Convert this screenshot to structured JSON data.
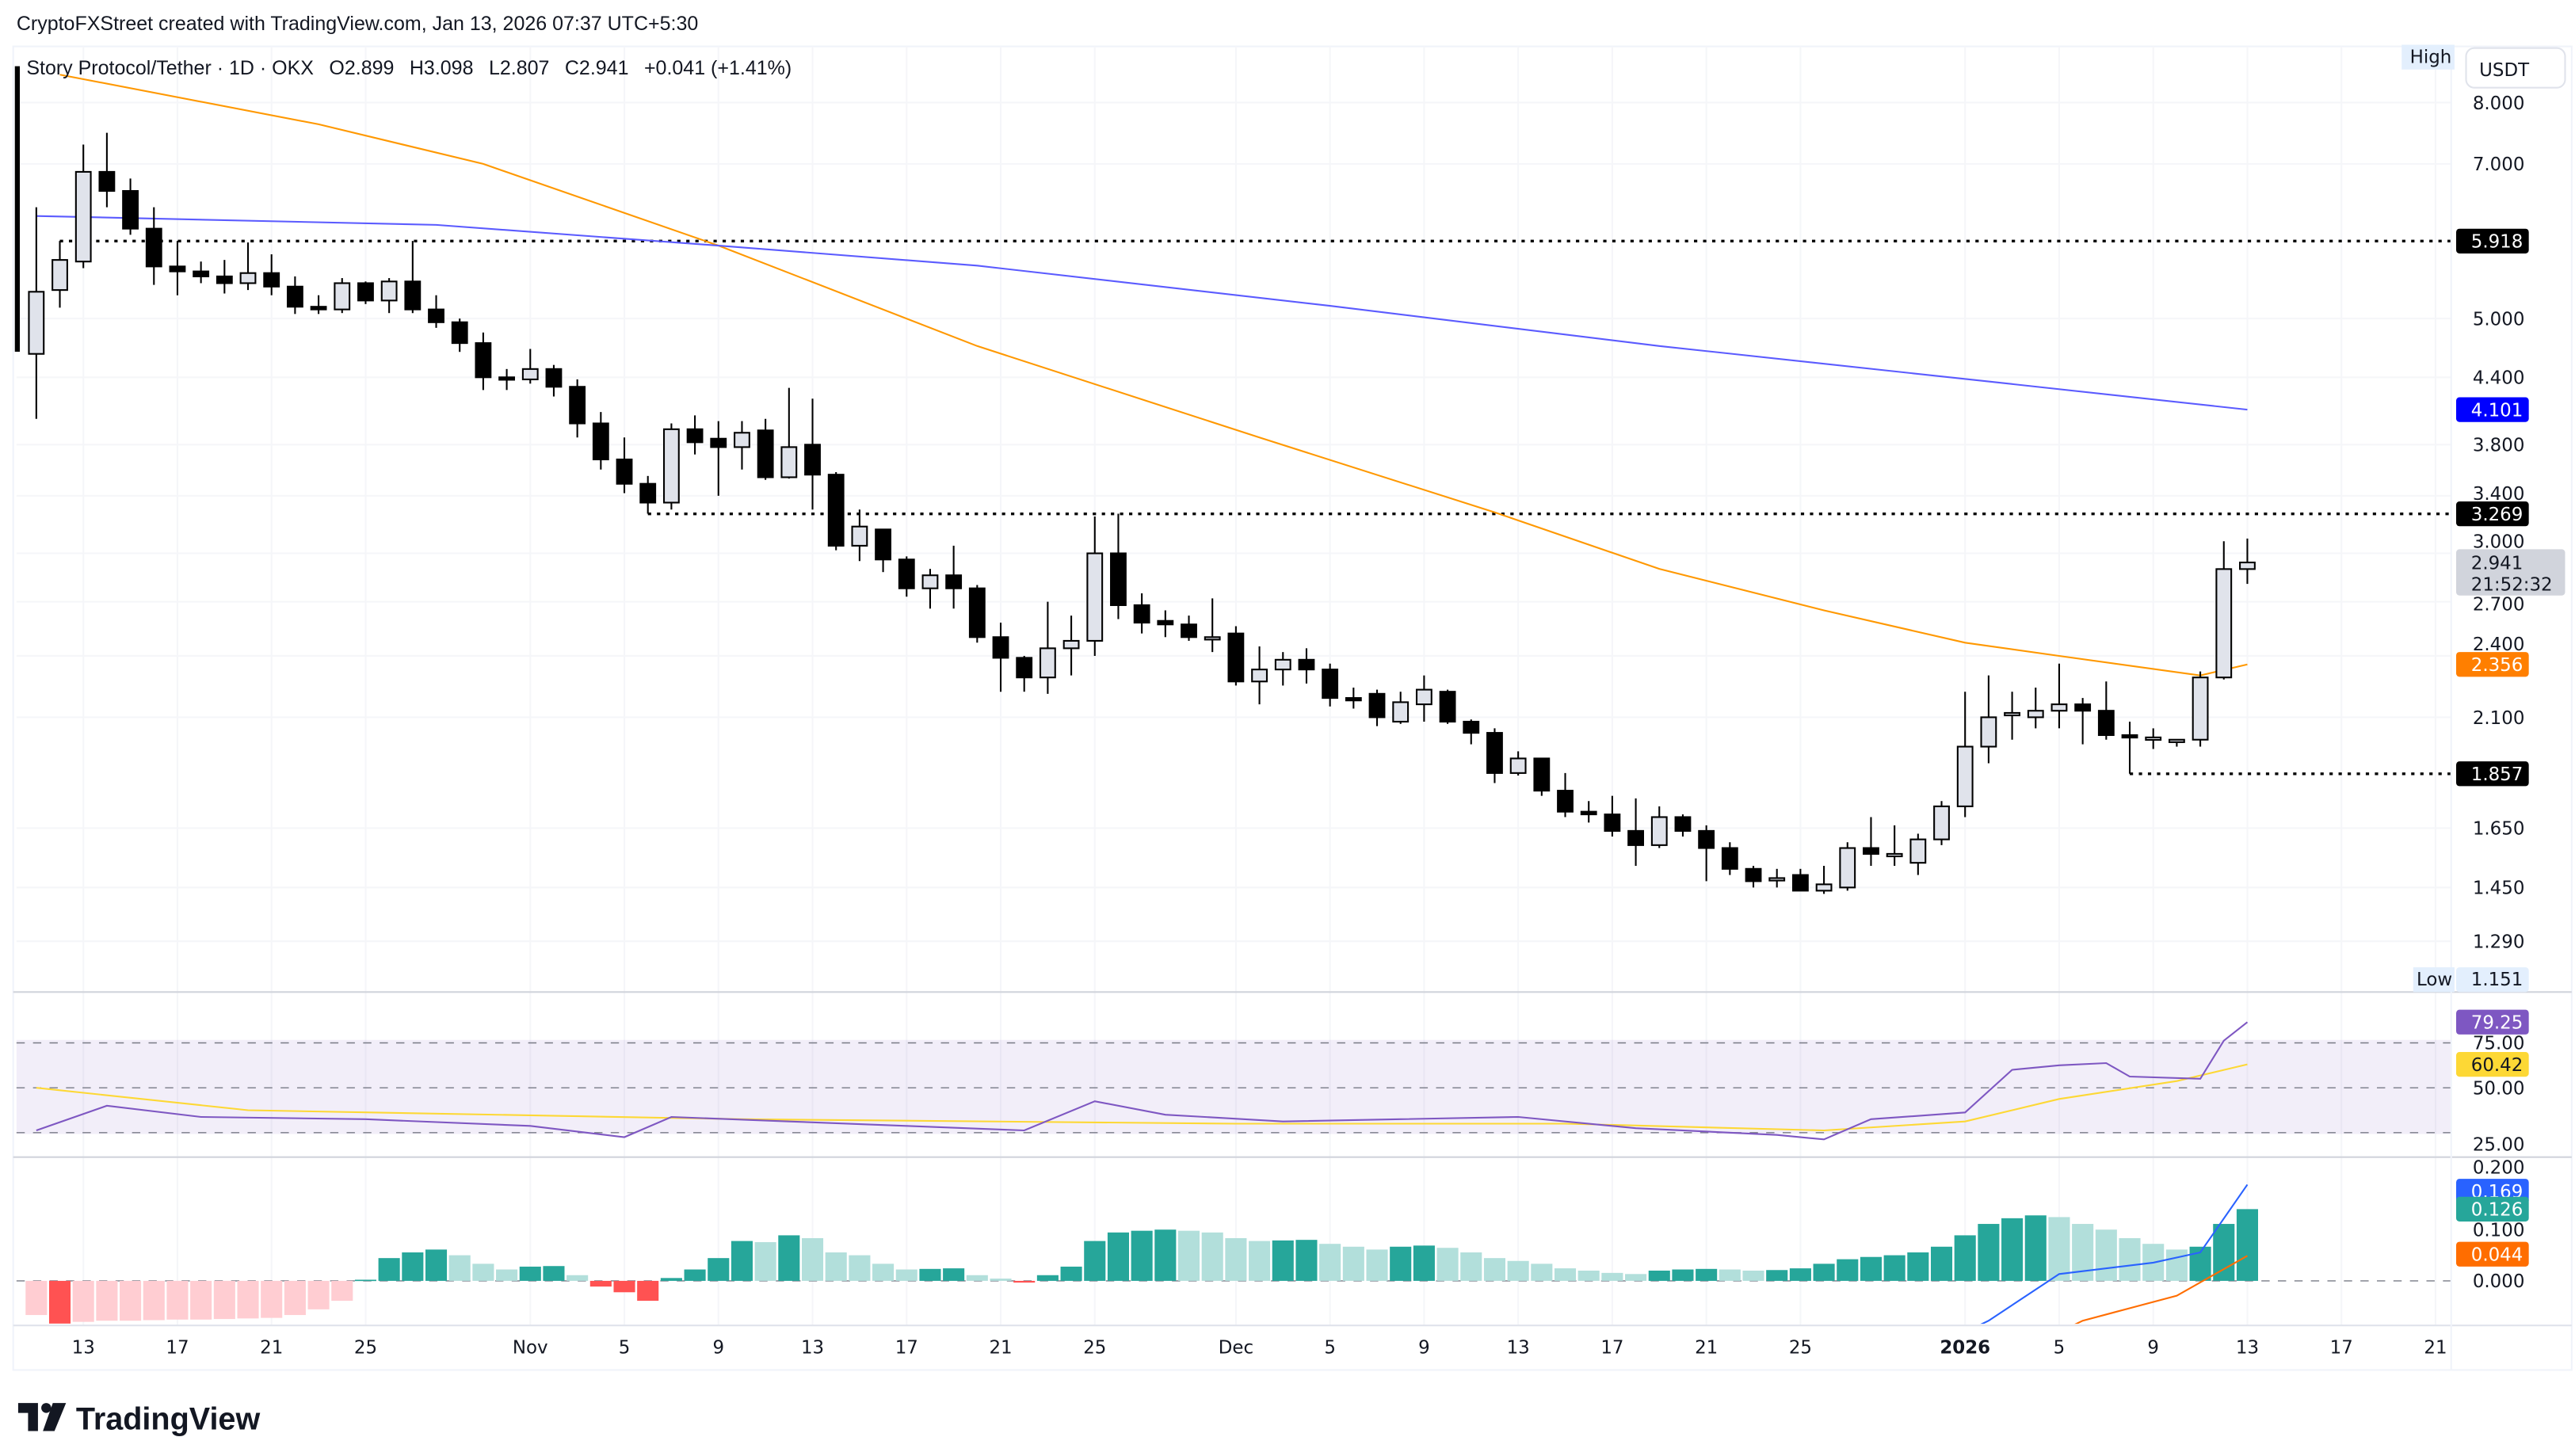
{
  "header": {
    "attribution": "CryptoFXStreet created with TradingView.com, Jan 13, 2026 07:37 UTC+5:30",
    "symbol": "Story Protocol/Tether · 1D · OKX",
    "open": "O2.899",
    "high": "H3.098",
    "low": "L2.807",
    "close": "C2.941",
    "change": "+0.041 (+1.41%)"
  },
  "currency_button": "USDT",
  "high_label": "High",
  "low_label": "Low",
  "low_value": "1.151",
  "logo_text": "TradingView",
  "badges": {
    "level_top": {
      "text": "5.918",
      "value": 5.918,
      "color": "#000000"
    },
    "sma200": {
      "text": "4.101",
      "value": 4.101,
      "color": "#0000ff"
    },
    "level_mid": {
      "text": "3.269",
      "value": 3.269,
      "color": "#000000"
    },
    "last_price": {
      "text": "2.941",
      "countdown": "21:52:32",
      "value": 2.941,
      "color": "#d1d4dc"
    },
    "sma50": {
      "text": "2.356",
      "value": 2.356,
      "color": "#ff7f00"
    },
    "level_low": {
      "text": "1.857",
      "value": 1.857,
      "color": "#000000"
    },
    "rsi": {
      "text": "79.25",
      "value": 79.25,
      "color": "#7e57c2"
    },
    "rsi_ma": {
      "text": "60.42",
      "value": 60.42,
      "color": "#fdd835"
    },
    "macd": {
      "text": "0.169",
      "value": 0.169,
      "color": "#2962ff"
    },
    "histogram": {
      "text": "0.126",
      "value": 0.126,
      "color": "#26a69a"
    },
    "signal": {
      "text": "0.044",
      "value": 0.044,
      "color": "#ff6d00"
    }
  },
  "chart_data": {
    "type": "candlestick",
    "title": "Story Protocol/Tether · 1D · OKX",
    "price_scale": "log",
    "price_ticks": [
      "8.000",
      "7.000",
      "5.000",
      "4.400",
      "3.800",
      "3.400",
      "3.000",
      "2.700",
      "2.400",
      "2.100",
      "1.650",
      "1.450",
      "1.290"
    ],
    "rsi_ticks": [
      "75.00",
      "50.00",
      "25.00"
    ],
    "macd_ticks": [
      "0.200",
      "0.100",
      "0.000"
    ],
    "time_ticks": [
      {
        "label": "13",
        "date": "2025-10-13"
      },
      {
        "label": "17",
        "date": "2025-10-17"
      },
      {
        "label": "21",
        "date": "2025-10-21"
      },
      {
        "label": "25",
        "date": "2025-10-25"
      },
      {
        "label": "Nov",
        "date": "2025-11-01"
      },
      {
        "label": "5",
        "date": "2025-11-05"
      },
      {
        "label": "9",
        "date": "2025-11-09"
      },
      {
        "label": "13",
        "date": "2025-11-13"
      },
      {
        "label": "17",
        "date": "2025-11-17"
      },
      {
        "label": "21",
        "date": "2025-11-21"
      },
      {
        "label": "25",
        "date": "2025-11-25"
      },
      {
        "label": "Dec",
        "date": "2025-12-01"
      },
      {
        "label": "5",
        "date": "2025-12-05"
      },
      {
        "label": "9",
        "date": "2025-12-09"
      },
      {
        "label": "13",
        "date": "2025-12-13"
      },
      {
        "label": "17",
        "date": "2025-12-17"
      },
      {
        "label": "21",
        "date": "2025-12-21"
      },
      {
        "label": "25",
        "date": "2025-12-25"
      },
      {
        "label": "2026",
        "date": "2026-01-01",
        "bold": true
      },
      {
        "label": "5",
        "date": "2026-01-05"
      },
      {
        "label": "9",
        "date": "2026-01-09"
      },
      {
        "label": "13",
        "date": "2026-01-13"
      },
      {
        "label": "17",
        "date": "2026-01-17"
      },
      {
        "label": "21",
        "date": "2026-01-21"
      }
    ],
    "candles_ohlc": [
      [
        "2025-10-11",
        4.63,
        6.37,
        4.02,
        5.3
      ],
      [
        "2025-10-12",
        5.32,
        5.92,
        5.12,
        5.68
      ],
      [
        "2025-10-13",
        5.66,
        7.3,
        5.58,
        6.88
      ],
      [
        "2025-10-14",
        6.88,
        7.49,
        6.37,
        6.6
      ],
      [
        "2025-10-15",
        6.6,
        6.78,
        6.0,
        6.08
      ],
      [
        "2025-10-16",
        6.08,
        6.37,
        5.38,
        5.6
      ],
      [
        "2025-10-17",
        5.6,
        5.92,
        5.26,
        5.54
      ],
      [
        "2025-10-18",
        5.54,
        5.66,
        5.4,
        5.48
      ],
      [
        "2025-10-19",
        5.48,
        5.68,
        5.28,
        5.4
      ],
      [
        "2025-10-20",
        5.4,
        5.9,
        5.32,
        5.52
      ],
      [
        "2025-10-21",
        5.52,
        5.75,
        5.26,
        5.36
      ],
      [
        "2025-10-22",
        5.36,
        5.48,
        5.05,
        5.13
      ],
      [
        "2025-10-23",
        5.13,
        5.26,
        5.05,
        5.1
      ],
      [
        "2025-10-24",
        5.1,
        5.46,
        5.06,
        5.4
      ],
      [
        "2025-10-25",
        5.4,
        5.42,
        5.16,
        5.2
      ],
      [
        "2025-10-26",
        5.2,
        5.46,
        5.06,
        5.42
      ],
      [
        "2025-10-27",
        5.42,
        5.92,
        5.06,
        5.1
      ],
      [
        "2025-10-28",
        5.1,
        5.26,
        4.9,
        4.96
      ],
      [
        "2025-10-29",
        4.96,
        5.0,
        4.65,
        4.74
      ],
      [
        "2025-10-30",
        4.74,
        4.85,
        4.28,
        4.4
      ],
      [
        "2025-10-31",
        4.4,
        4.48,
        4.28,
        4.38
      ],
      [
        "2025-11-01",
        4.38,
        4.68,
        4.34,
        4.48
      ],
      [
        "2025-11-02",
        4.48,
        4.52,
        4.22,
        4.31
      ],
      [
        "2025-11-03",
        4.31,
        4.38,
        3.86,
        3.98
      ],
      [
        "2025-11-04",
        3.98,
        4.08,
        3.6,
        3.68
      ],
      [
        "2025-11-05",
        3.68,
        3.86,
        3.42,
        3.49
      ],
      [
        "2025-11-06",
        3.49,
        3.55,
        3.27,
        3.35
      ],
      [
        "2025-11-07",
        3.35,
        3.98,
        3.3,
        3.93
      ],
      [
        "2025-11-08",
        3.93,
        4.05,
        3.72,
        3.82
      ],
      [
        "2025-11-09",
        3.85,
        4.0,
        3.4,
        3.78
      ],
      [
        "2025-11-10",
        3.78,
        4.0,
        3.6,
        3.9
      ],
      [
        "2025-11-11",
        3.92,
        4.02,
        3.52,
        3.54
      ],
      [
        "2025-11-12",
        3.54,
        4.3,
        3.53,
        3.78
      ],
      [
        "2025-11-13",
        3.8,
        4.2,
        3.3,
        3.56
      ],
      [
        "2025-11-14",
        3.56,
        3.58,
        3.02,
        3.05
      ],
      [
        "2025-11-15",
        3.05,
        3.3,
        2.95,
        3.18
      ],
      [
        "2025-11-16",
        3.16,
        3.16,
        2.88,
        2.96
      ],
      [
        "2025-11-17",
        2.96,
        2.98,
        2.73,
        2.78
      ],
      [
        "2025-11-18",
        2.78,
        2.9,
        2.66,
        2.86
      ],
      [
        "2025-11-19",
        2.86,
        3.05,
        2.66,
        2.78
      ],
      [
        "2025-11-20",
        2.78,
        2.8,
        2.47,
        2.5
      ],
      [
        "2025-11-21",
        2.5,
        2.58,
        2.22,
        2.39
      ],
      [
        "2025-11-22",
        2.39,
        2.4,
        2.22,
        2.29
      ],
      [
        "2025-11-23",
        2.29,
        2.7,
        2.21,
        2.44
      ],
      [
        "2025-11-24",
        2.44,
        2.62,
        2.3,
        2.48
      ],
      [
        "2025-11-25",
        2.48,
        3.25,
        2.4,
        3.0
      ],
      [
        "2025-11-26",
        3.0,
        3.27,
        2.6,
        2.68
      ],
      [
        "2025-11-27",
        2.68,
        2.75,
        2.52,
        2.58
      ],
      [
        "2025-11-28",
        2.59,
        2.65,
        2.5,
        2.57
      ],
      [
        "2025-11-29",
        2.57,
        2.62,
        2.48,
        2.5
      ],
      [
        "2025-11-30",
        2.5,
        2.72,
        2.42,
        2.5
      ],
      [
        "2025-12-01",
        2.52,
        2.56,
        2.25,
        2.27
      ],
      [
        "2025-12-02",
        2.27,
        2.45,
        2.16,
        2.33
      ],
      [
        "2025-12-03",
        2.33,
        2.42,
        2.25,
        2.38
      ],
      [
        "2025-12-04",
        2.38,
        2.44,
        2.26,
        2.33
      ],
      [
        "2025-12-05",
        2.33,
        2.36,
        2.15,
        2.19
      ],
      [
        "2025-12-06",
        2.19,
        2.24,
        2.14,
        2.18
      ],
      [
        "2025-12-07",
        2.21,
        2.23,
        2.06,
        2.1
      ],
      [
        "2025-12-08",
        2.08,
        2.22,
        2.07,
        2.17
      ],
      [
        "2025-12-09",
        2.16,
        2.3,
        2.08,
        2.23
      ],
      [
        "2025-12-10",
        2.22,
        2.23,
        2.07,
        2.08
      ],
      [
        "2025-12-11",
        2.08,
        2.09,
        1.98,
        2.03
      ],
      [
        "2025-12-12",
        2.03,
        2.05,
        1.82,
        1.86
      ],
      [
        "2025-12-13",
        1.86,
        1.95,
        1.85,
        1.92
      ],
      [
        "2025-12-14",
        1.92,
        1.92,
        1.77,
        1.79
      ],
      [
        "2025-12-15",
        1.79,
        1.86,
        1.69,
        1.71
      ],
      [
        "2025-12-16",
        1.71,
        1.75,
        1.67,
        1.7
      ],
      [
        "2025-12-17",
        1.7,
        1.77,
        1.62,
        1.64
      ],
      [
        "2025-12-18",
        1.64,
        1.76,
        1.52,
        1.59
      ],
      [
        "2025-12-19",
        1.59,
        1.73,
        1.58,
        1.69
      ],
      [
        "2025-12-20",
        1.69,
        1.7,
        1.62,
        1.64
      ],
      [
        "2025-12-21",
        1.64,
        1.66,
        1.47,
        1.58
      ],
      [
        "2025-12-22",
        1.58,
        1.6,
        1.49,
        1.51
      ],
      [
        "2025-12-23",
        1.51,
        1.52,
        1.45,
        1.47
      ],
      [
        "2025-12-24",
        1.48,
        1.51,
        1.45,
        1.48
      ],
      [
        "2025-12-25",
        1.49,
        1.51,
        1.44,
        1.44
      ],
      [
        "2025-12-26",
        1.44,
        1.52,
        1.43,
        1.46
      ],
      [
        "2025-12-27",
        1.45,
        1.6,
        1.44,
        1.58
      ],
      [
        "2025-12-28",
        1.58,
        1.69,
        1.52,
        1.56
      ],
      [
        "2025-12-29",
        1.56,
        1.66,
        1.52,
        1.56
      ],
      [
        "2025-12-30",
        1.53,
        1.63,
        1.49,
        1.61
      ],
      [
        "2025-12-31",
        1.61,
        1.75,
        1.59,
        1.73
      ],
      [
        "2026-01-01",
        1.73,
        2.22,
        1.69,
        1.97
      ],
      [
        "2026-01-02",
        1.97,
        2.3,
        1.9,
        2.1
      ],
      [
        "2026-01-03",
        2.12,
        2.22,
        2.0,
        2.12
      ],
      [
        "2026-01-04",
        2.1,
        2.24,
        2.05,
        2.13
      ],
      [
        "2026-01-05",
        2.13,
        2.36,
        2.05,
        2.16
      ],
      [
        "2026-01-06",
        2.16,
        2.19,
        1.98,
        2.13
      ],
      [
        "2026-01-07",
        2.13,
        2.27,
        2.0,
        2.02
      ],
      [
        "2026-01-08",
        2.02,
        2.08,
        1.857,
        2.01
      ],
      [
        "2026-01-09",
        2.01,
        2.05,
        1.96,
        2.01
      ],
      [
        "2026-01-10",
        2.0,
        2.0,
        1.97,
        2.0
      ],
      [
        "2026-01-11",
        2.0,
        2.32,
        1.97,
        2.29
      ],
      [
        "2026-01-12",
        2.29,
        3.08,
        2.28,
        2.899
      ],
      [
        "2026-01-13",
        2.899,
        3.098,
        2.807,
        2.941
      ]
    ],
    "moving_averages": [
      {
        "color": "#ff9800",
        "points": [
          [
            "2025-10-12",
            8.5
          ],
          [
            "2025-10-23",
            7.63
          ],
          [
            "2025-10-30",
            7.0
          ],
          [
            "2025-11-09",
            5.86
          ],
          [
            "2025-11-20",
            4.71
          ],
          [
            "2025-12-02",
            3.86
          ],
          [
            "2025-12-12",
            3.28
          ],
          [
            "2025-12-19",
            2.9
          ],
          [
            "2025-12-26",
            2.65
          ],
          [
            "2026-01-01",
            2.47
          ],
          [
            "2026-01-05",
            2.4
          ],
          [
            "2026-01-11",
            2.3
          ],
          [
            "2026-01-13",
            2.356
          ]
        ]
      },
      {
        "color": "#5b5bff",
        "points": [
          [
            "2025-10-11",
            6.25
          ],
          [
            "2025-10-28",
            6.13
          ],
          [
            "2025-11-09",
            5.86
          ],
          [
            "2025-11-20",
            5.61
          ],
          [
            "2025-12-05",
            5.14
          ],
          [
            "2025-12-19",
            4.71
          ],
          [
            "2026-01-02",
            4.36
          ],
          [
            "2026-01-13",
            4.101
          ]
        ]
      }
    ],
    "horizontal_levels": [
      {
        "value": 5.918,
        "from": "2025-10-12"
      },
      {
        "value": 3.269,
        "from": "2025-11-06"
      },
      {
        "value": 1.857,
        "from": "2026-01-08"
      }
    ],
    "rsi": {
      "band": [
        30,
        70
      ],
      "mid": 50,
      "line_color": "#7e57c2",
      "ma_color": "#fdd835",
      "values": [
        [
          "2025-10-11",
          31
        ],
        [
          "2025-10-14",
          42
        ],
        [
          "2025-10-18",
          37
        ],
        [
          "2025-10-25",
          36
        ],
        [
          "2025-11-01",
          33
        ],
        [
          "2025-11-05",
          28
        ],
        [
          "2025-11-07",
          37
        ],
        [
          "2025-11-12",
          35
        ],
        [
          "2025-11-17",
          33
        ],
        [
          "2025-11-22",
          31
        ],
        [
          "2025-11-25",
          44
        ],
        [
          "2025-11-28",
          38
        ],
        [
          "2025-12-03",
          35
        ],
        [
          "2025-12-08",
          36
        ],
        [
          "2025-12-13",
          37
        ],
        [
          "2025-12-18",
          32
        ],
        [
          "2025-12-24",
          29
        ],
        [
          "2025-12-26",
          27
        ],
        [
          "2025-12-28",
          36
        ],
        [
          "2026-01-01",
          39
        ],
        [
          "2026-01-03",
          58
        ],
        [
          "2026-01-05",
          60
        ],
        [
          "2026-01-07",
          61
        ],
        [
          "2026-01-08",
          55
        ],
        [
          "2026-01-11",
          54
        ],
        [
          "2026-01-12",
          71
        ],
        [
          "2026-01-13",
          79.25
        ]
      ],
      "ma": [
        [
          "2025-10-11",
          50
        ],
        [
          "2025-10-20",
          40
        ],
        [
          "2025-11-10",
          36
        ],
        [
          "2025-12-01",
          34
        ],
        [
          "2025-12-15",
          34
        ],
        [
          "2025-12-26",
          31
        ],
        [
          "2026-01-01",
          35
        ],
        [
          "2026-01-05",
          45
        ],
        [
          "2026-01-10",
          53
        ],
        [
          "2026-01-13",
          60.42
        ]
      ]
    },
    "macd": {
      "histogram": [
        -0.06,
        -0.075,
        -0.072,
        -0.07,
        -0.07,
        -0.069,
        -0.068,
        -0.068,
        -0.067,
        -0.066,
        -0.065,
        -0.06,
        -0.05,
        -0.035,
        0.002,
        0.04,
        0.05,
        0.055,
        0.045,
        0.03,
        0.02,
        0.025,
        0.026,
        0.01,
        -0.01,
        -0.02,
        -0.035,
        0.005,
        0.02,
        0.04,
        0.07,
        0.068,
        0.08,
        0.075,
        0.05,
        0.045,
        0.03,
        0.02,
        0.021,
        0.022,
        0.01,
        0.004,
        -0.003,
        0.01,
        0.025,
        0.07,
        0.085,
        0.088,
        0.09,
        0.088,
        0.085,
        0.075,
        0.07,
        0.071,
        0.072,
        0.065,
        0.06,
        0.055,
        0.06,
        0.062,
        0.058,
        0.05,
        0.04,
        0.035,
        0.03,
        0.022,
        0.018,
        0.014,
        0.012,
        0.018,
        0.02,
        0.021,
        0.02,
        0.018,
        0.019,
        0.022,
        0.03,
        0.038,
        0.042,
        0.045,
        0.05,
        0.06,
        0.08,
        0.1,
        0.11,
        0.115,
        0.112,
        0.1,
        0.09,
        0.075,
        0.065,
        0.055,
        0.06,
        0.1,
        0.126
      ],
      "macd_line": [
        [
          "2026-01-01",
          -0.09
        ],
        [
          "2026-01-02",
          -0.07
        ],
        [
          "2026-01-05",
          0.012
        ],
        [
          "2026-01-09",
          0.032
        ],
        [
          "2026-01-11",
          0.05
        ],
        [
          "2026-01-13",
          0.169
        ]
      ],
      "signal_line": [
        [
          "2026-01-05",
          -0.09
        ],
        [
          "2026-01-06",
          -0.07
        ],
        [
          "2026-01-10",
          -0.026
        ],
        [
          "2026-01-13",
          0.044
        ]
      ],
      "colors": {
        "pos_up": "#26a69a",
        "pos_down": "#b2dfdb",
        "neg_down": "#ff5252",
        "neg_up": "#ffcdd2",
        "macd": "#2962ff",
        "signal": "#ff6d00"
      }
    }
  }
}
